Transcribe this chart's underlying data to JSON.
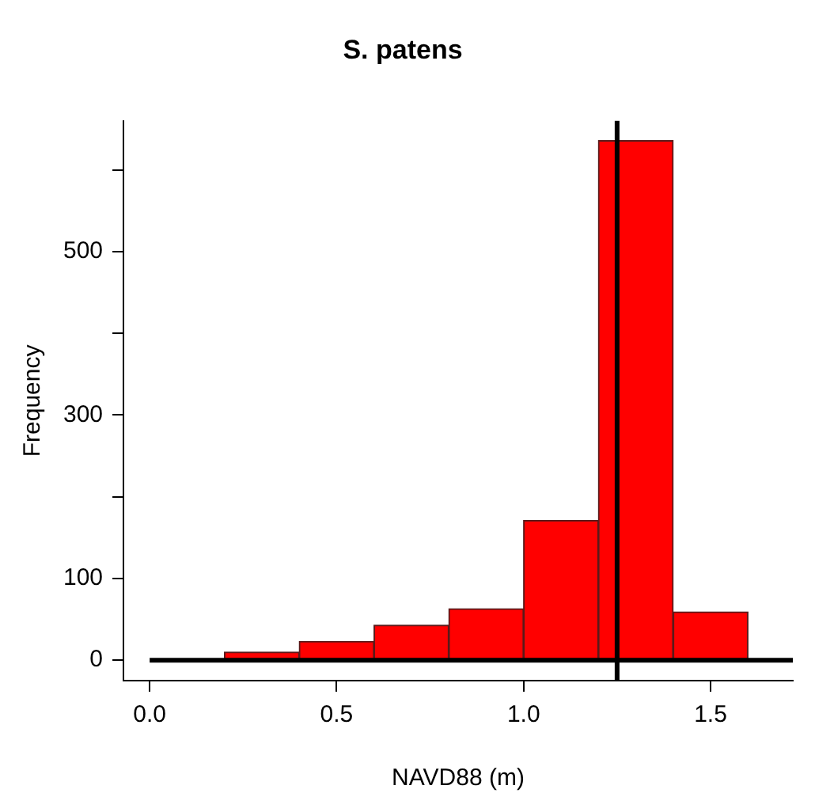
{
  "chart_data": {
    "type": "histogram",
    "title": "S. patens",
    "xlabel": "NAVD88 (m)",
    "ylabel": "Frequency",
    "bins": [
      0,
      0.2,
      0.4,
      0.6,
      0.8,
      1.0,
      1.2,
      1.4,
      1.6
    ],
    "values": [
      null,
      10,
      23,
      43,
      63,
      171,
      636,
      59
    ],
    "color": "#ff0000",
    "xlim": [
      -0.07,
      1.72
    ],
    "xticks": [
      {
        "value": 0,
        "label": "0.0"
      },
      {
        "value": 0.5,
        "label": "0.5"
      },
      {
        "value": 1,
        "label": "1.0"
      },
      {
        "value": 1.5,
        "label": "1.5"
      }
    ],
    "ylim": [
      -25,
      660
    ],
    "yticks": [
      0,
      100,
      {
        "value": 200,
        "label": null
      },
      300,
      {
        "value": 400,
        "label": null
      },
      500,
      {
        "value": 600,
        "label": null
      }
    ],
    "ref_lines": [
      {
        "axis": "y",
        "value": 0,
        "color": "#000000"
      },
      {
        "axis": "x",
        "value": 1.25,
        "color": "#000000"
      }
    ],
    "grid": false,
    "legend": false
  }
}
